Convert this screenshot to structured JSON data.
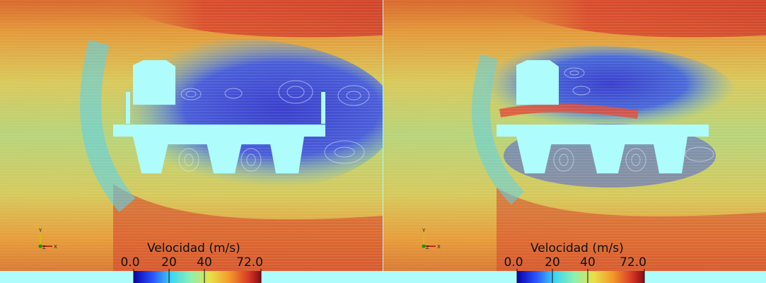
{
  "panels": [
    {
      "legend": {
        "title": "Velocidad (m/s)",
        "ticks": [
          "0.0",
          "20",
          "40",
          "72.0"
        ],
        "range": [
          0.0,
          72.0
        ]
      },
      "axes_triad": {
        "y": "Y",
        "z": "Z",
        "x": "X"
      }
    },
    {
      "legend": {
        "title": "Velocidad (m/s)",
        "ticks": [
          "0.0",
          "20",
          "40",
          "72.0"
        ],
        "range": [
          0.0,
          72.0
        ]
      },
      "axes_triad": {
        "y": "Y",
        "z": "Z",
        "x": "X"
      }
    }
  ],
  "colors": {
    "background_floor": "#aefcfc",
    "colormap": [
      "#0b00a8",
      "#2a55ff",
      "#3fd7f0",
      "#8ff0b0",
      "#e8e04a",
      "#f39a2a",
      "#d83a28",
      "#8a0a12"
    ]
  }
}
